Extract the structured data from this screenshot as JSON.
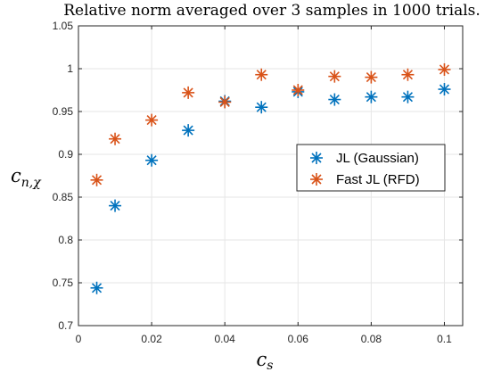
{
  "chart_data": {
    "type": "scatter",
    "title": "Relative norm averaged over 3 samples in 1000 trials.",
    "xlabel_main": "c",
    "xlabel_sub": "s",
    "ylabel_main": "c",
    "ylabel_sub": "n,𝜒",
    "xlim": [
      0,
      0.105
    ],
    "ylim": [
      0.7,
      1.05
    ],
    "xticks": [
      0,
      0.02,
      0.04,
      0.06,
      0.08,
      0.1
    ],
    "xtick_labels": [
      "0",
      "0.02",
      "0.04",
      "0.06",
      "0.08",
      "0.1"
    ],
    "yticks": [
      0.7,
      0.75,
      0.8,
      0.85,
      0.9,
      0.95,
      1,
      1.05
    ],
    "ytick_labels": [
      "0.7",
      "0.75",
      "0.8",
      "0.85",
      "0.9",
      "0.95",
      "1",
      "1.05"
    ],
    "grid": true,
    "legend_position": "right",
    "series": [
      {
        "name": "JL (Gaussian)",
        "color": "#0072BD",
        "marker": "asterisk",
        "x": [
          0.005,
          0.01,
          0.02,
          0.03,
          0.04,
          0.05,
          0.06,
          0.07,
          0.08,
          0.09,
          0.1
        ],
        "y": [
          0.744,
          0.84,
          0.893,
          0.928,
          0.962,
          0.955,
          0.973,
          0.964,
          0.967,
          0.967,
          0.976
        ]
      },
      {
        "name": "Fast JL (RFD)",
        "color": "#D95319",
        "marker": "asterisk",
        "x": [
          0.005,
          0.01,
          0.02,
          0.03,
          0.04,
          0.05,
          0.06,
          0.07,
          0.08,
          0.09,
          0.1
        ],
        "y": [
          0.87,
          0.918,
          0.94,
          0.972,
          0.961,
          0.993,
          0.975,
          0.991,
          0.99,
          0.993,
          0.999
        ]
      }
    ]
  }
}
